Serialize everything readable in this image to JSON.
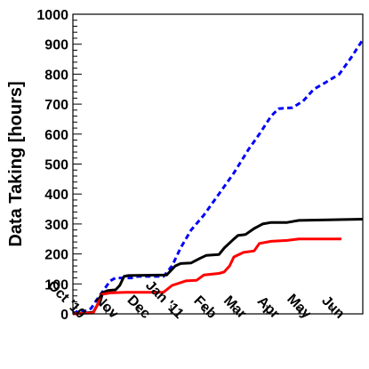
{
  "chart_data": {
    "type": "line",
    "title": "",
    "xlabel": "",
    "ylabel": "Data Taking [hours]",
    "ylim": [
      0,
      1000
    ],
    "yticks": [
      0,
      100,
      200,
      300,
      400,
      500,
      600,
      700,
      800,
      900,
      1000
    ],
    "xlim": [
      "2010-10-01",
      "2011-06-30"
    ],
    "xtick_labels": [
      "Oct '10",
      "Nov",
      "Dec",
      "Jan '11",
      "Feb",
      "Mar",
      "Apr",
      "May",
      "Jun"
    ],
    "xtick_dates": [
      "2010-10-01",
      "2010-11-01",
      "2010-12-01",
      "2011-01-01",
      "2011-02-01",
      "2011-03-01",
      "2011-04-01",
      "2011-05-01",
      "2011-06-01"
    ],
    "grid": false,
    "series": [
      {
        "color": "#0000ff",
        "style": "dashed",
        "points": [
          [
            "2010-10-01",
            0
          ],
          [
            "2010-10-05",
            8
          ],
          [
            "2010-10-14",
            10
          ],
          [
            "2010-10-18",
            18
          ],
          [
            "2010-10-23",
            45
          ],
          [
            "2010-10-30",
            80
          ],
          [
            "2010-11-05",
            110
          ],
          [
            "2010-11-10",
            120
          ],
          [
            "2010-11-25",
            120
          ],
          [
            "2010-12-01",
            125
          ],
          [
            "2010-12-25",
            125
          ],
          [
            "2011-01-02",
            160
          ],
          [
            "2011-01-10",
            220
          ],
          [
            "2011-01-20",
            280
          ],
          [
            "2011-02-01",
            330
          ],
          [
            "2011-02-15",
            400
          ],
          [
            "2011-03-01",
            470
          ],
          [
            "2011-03-15",
            550
          ],
          [
            "2011-03-25",
            600
          ],
          [
            "2011-04-05",
            660
          ],
          [
            "2011-04-12",
            685
          ],
          [
            "2011-04-25",
            688
          ],
          [
            "2011-05-05",
            710
          ],
          [
            "2011-05-15",
            750
          ],
          [
            "2011-05-25",
            770
          ],
          [
            "2011-06-08",
            800
          ],
          [
            "2011-06-20",
            860
          ],
          [
            "2011-06-30",
            915
          ]
        ]
      },
      {
        "color": "#000000",
        "style": "solid",
        "points": [
          [
            "2010-10-01",
            0
          ],
          [
            "2010-10-12",
            3
          ],
          [
            "2010-10-20",
            5
          ],
          [
            "2010-10-24",
            30
          ],
          [
            "2010-10-28",
            70
          ],
          [
            "2010-11-03",
            78
          ],
          [
            "2010-11-10",
            80
          ],
          [
            "2010-11-14",
            95
          ],
          [
            "2010-11-18",
            125
          ],
          [
            "2010-11-22",
            128
          ],
          [
            "2010-12-28",
            130
          ],
          [
            "2011-01-05",
            160
          ],
          [
            "2011-01-10",
            168
          ],
          [
            "2011-01-20",
            170
          ],
          [
            "2011-01-28",
            185
          ],
          [
            "2011-02-03",
            195
          ],
          [
            "2011-02-15",
            198
          ],
          [
            "2011-02-20",
            220
          ],
          [
            "2011-03-01",
            250
          ],
          [
            "2011-03-05",
            262
          ],
          [
            "2011-03-12",
            265
          ],
          [
            "2011-03-20",
            285
          ],
          [
            "2011-03-28",
            300
          ],
          [
            "2011-04-05",
            305
          ],
          [
            "2011-04-20",
            305
          ],
          [
            "2011-05-01",
            312
          ],
          [
            "2011-06-30",
            316
          ]
        ]
      },
      {
        "color": "#ff0000",
        "style": "solid",
        "points": [
          [
            "2010-10-01",
            0
          ],
          [
            "2010-10-12",
            2
          ],
          [
            "2010-10-20",
            3
          ],
          [
            "2010-10-24",
            30
          ],
          [
            "2010-10-28",
            65
          ],
          [
            "2010-11-05",
            70
          ],
          [
            "2010-11-20",
            72
          ],
          [
            "2010-12-25",
            72
          ],
          [
            "2011-01-02",
            95
          ],
          [
            "2011-01-15",
            110
          ],
          [
            "2011-01-25",
            112
          ],
          [
            "2011-02-01",
            130
          ],
          [
            "2011-02-15",
            135
          ],
          [
            "2011-02-20",
            140
          ],
          [
            "2011-02-25",
            160
          ],
          [
            "2011-03-01",
            190
          ],
          [
            "2011-03-10",
            205
          ],
          [
            "2011-03-20",
            210
          ],
          [
            "2011-03-25",
            235
          ],
          [
            "2011-04-05",
            242
          ],
          [
            "2011-04-20",
            245
          ],
          [
            "2011-05-01",
            250
          ],
          [
            "2011-06-10",
            250
          ]
        ]
      }
    ]
  }
}
